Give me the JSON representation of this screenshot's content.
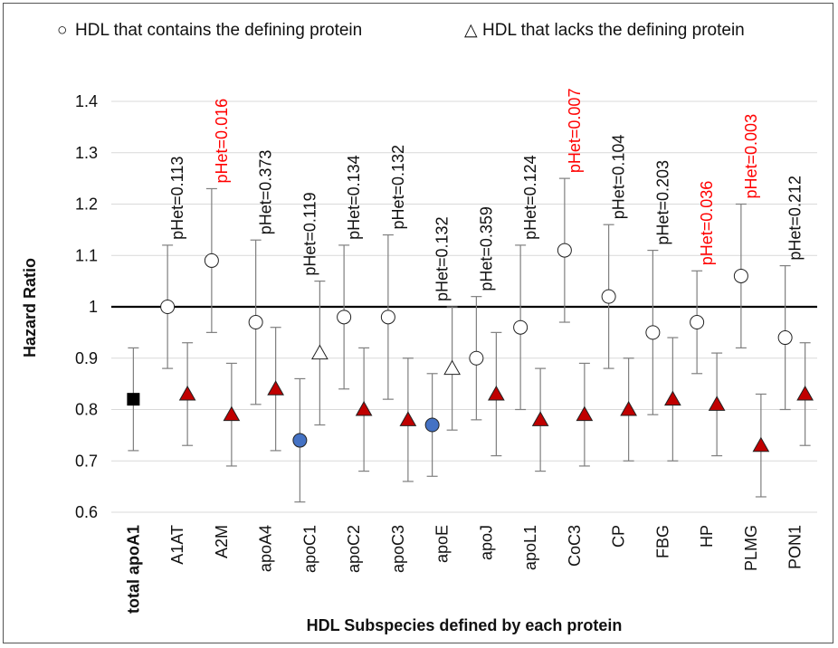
{
  "chart_data": {
    "type": "scatter",
    "title": "",
    "xlabel": "HDL Subspecies defined by each protein",
    "ylabel": "Hazard Ratio",
    "ylim": [
      0.6,
      1.4
    ],
    "yticks": [
      "0.6",
      "0.7",
      "0.8",
      "0.9",
      "1",
      "1.1",
      "1.2",
      "1.3",
      "1.4"
    ],
    "grid": true,
    "reference_line": 1.0,
    "legend": {
      "position": "top",
      "entries": [
        {
          "symbol": "○",
          "label": "HDL that contains the defining protein"
        },
        {
          "symbol": "△",
          "label": "HDL that lacks the defining protein"
        }
      ]
    },
    "colors": {
      "open_marker": "#ffffff",
      "lacks_marker": "#c00000",
      "contains_sig_marker": "#4472c4",
      "total_marker": "#000000",
      "significant_text": "#ff0000",
      "normal_text": "#111111"
    },
    "categories": [
      {
        "label": "total apoA1",
        "bold": true,
        "total": {
          "hr": 0.82,
          "lo": 0.72,
          "hi": 0.92
        }
      },
      {
        "label": "A1AT",
        "contains": {
          "hr": 1.0,
          "lo": 0.88,
          "hi": 1.12
        },
        "contains_filled": false,
        "lacks": {
          "hr": 0.83,
          "lo": 0.73,
          "hi": 0.93
        },
        "lacks_filled": true,
        "phet": "pHet=0.113",
        "phet_sig": false
      },
      {
        "label": "A2M",
        "contains": {
          "hr": 1.09,
          "lo": 0.95,
          "hi": 1.23
        },
        "contains_filled": false,
        "lacks": {
          "hr": 0.79,
          "lo": 0.69,
          "hi": 0.89
        },
        "lacks_filled": true,
        "phet": "pHet=0.016",
        "phet_sig": true
      },
      {
        "label": "apoA4",
        "contains": {
          "hr": 0.97,
          "lo": 0.81,
          "hi": 1.13
        },
        "contains_filled": false,
        "lacks": {
          "hr": 0.84,
          "lo": 0.72,
          "hi": 0.96
        },
        "lacks_filled": true,
        "phet": "pHet=0.373",
        "phet_sig": false
      },
      {
        "label": "apoC1",
        "contains": {
          "hr": 0.74,
          "lo": 0.62,
          "hi": 0.86
        },
        "contains_filled": true,
        "lacks": {
          "hr": 0.91,
          "lo": 0.77,
          "hi": 1.05
        },
        "lacks_filled": false,
        "phet": "pHet=0.119",
        "phet_sig": false
      },
      {
        "label": "apoC2",
        "contains": {
          "hr": 0.98,
          "lo": 0.84,
          "hi": 1.12
        },
        "contains_filled": false,
        "lacks": {
          "hr": 0.8,
          "lo": 0.68,
          "hi": 0.92
        },
        "lacks_filled": true,
        "phet": "pHet=0.134",
        "phet_sig": false
      },
      {
        "label": "apoC3",
        "contains": {
          "hr": 0.98,
          "lo": 0.82,
          "hi": 1.14
        },
        "contains_filled": false,
        "lacks": {
          "hr": 0.78,
          "lo": 0.66,
          "hi": 0.9
        },
        "lacks_filled": true,
        "phet": "pHet=0.132",
        "phet_sig": false
      },
      {
        "label": "apoE",
        "contains": {
          "hr": 0.77,
          "lo": 0.67,
          "hi": 0.87
        },
        "contains_filled": true,
        "lacks": {
          "hr": 0.88,
          "lo": 0.76,
          "hi": 1.0
        },
        "lacks_filled": false,
        "phet": "pHet=0.132",
        "phet_sig": false
      },
      {
        "label": "apoJ",
        "contains": {
          "hr": 0.9,
          "lo": 0.78,
          "hi": 1.02
        },
        "contains_filled": false,
        "lacks": {
          "hr": 0.83,
          "lo": 0.71,
          "hi": 0.95
        },
        "lacks_filled": true,
        "phet": "pHet=0.359",
        "phet_sig": false
      },
      {
        "label": "apoL1",
        "contains": {
          "hr": 0.96,
          "lo": 0.8,
          "hi": 1.12
        },
        "contains_filled": false,
        "lacks": {
          "hr": 0.78,
          "lo": 0.68,
          "hi": 0.88
        },
        "lacks_filled": true,
        "phet": "pHet=0.124",
        "phet_sig": false
      },
      {
        "label": "CoC3",
        "contains": {
          "hr": 1.11,
          "lo": 0.97,
          "hi": 1.25
        },
        "contains_filled": false,
        "lacks": {
          "hr": 0.79,
          "lo": 0.69,
          "hi": 0.89
        },
        "lacks_filled": true,
        "phet": "pHet=0.007",
        "phet_sig": true
      },
      {
        "label": "CP",
        "contains": {
          "hr": 1.02,
          "lo": 0.88,
          "hi": 1.16
        },
        "contains_filled": false,
        "lacks": {
          "hr": 0.8,
          "lo": 0.7,
          "hi": 0.9
        },
        "lacks_filled": true,
        "phet": "pHet=0.104",
        "phet_sig": false
      },
      {
        "label": "FBG",
        "contains": {
          "hr": 0.95,
          "lo": 0.79,
          "hi": 1.11
        },
        "contains_filled": false,
        "lacks": {
          "hr": 0.82,
          "lo": 0.7,
          "hi": 0.94
        },
        "lacks_filled": true,
        "phet": "pHet=0.203",
        "phet_sig": false
      },
      {
        "label": "HP",
        "contains": {
          "hr": 0.97,
          "lo": 0.87,
          "hi": 1.07
        },
        "contains_filled": false,
        "lacks": {
          "hr": 0.81,
          "lo": 0.71,
          "hi": 0.91
        },
        "lacks_filled": true,
        "phet": "pHet=0.036",
        "phet_sig": true
      },
      {
        "label": "PLMG",
        "contains": {
          "hr": 1.06,
          "lo": 0.92,
          "hi": 1.2
        },
        "contains_filled": false,
        "lacks": {
          "hr": 0.73,
          "lo": 0.63,
          "hi": 0.83
        },
        "lacks_filled": true,
        "phet": "pHet=0.003",
        "phet_sig": true
      },
      {
        "label": "PON1",
        "contains": {
          "hr": 0.94,
          "lo": 0.8,
          "hi": 1.08
        },
        "contains_filled": false,
        "lacks": {
          "hr": 0.83,
          "lo": 0.73,
          "hi": 0.93
        },
        "lacks_filled": true,
        "phet": "pHet=0.212",
        "phet_sig": false
      }
    ]
  }
}
